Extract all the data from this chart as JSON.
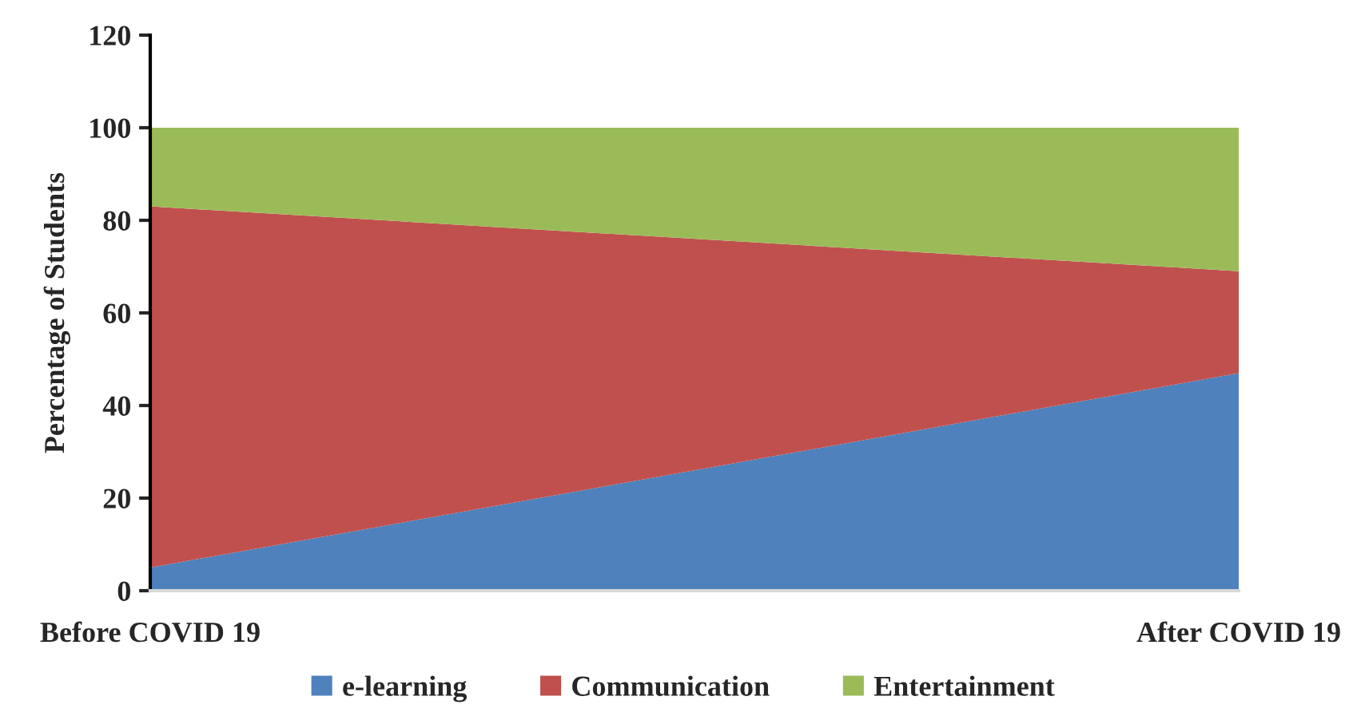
{
  "chart_data": {
    "type": "area",
    "stacked": true,
    "ylabel": "Percentage of Students",
    "categories": [
      "Before COVID 19",
      "After COVID 19"
    ],
    "series": [
      {
        "name": "e-learning",
        "color": "#4f81bd",
        "values": [
          5,
          47
        ]
      },
      {
        "name": "Communication",
        "color": "#c0504d",
        "values": [
          78,
          22
        ]
      },
      {
        "name": "Entertainment",
        "color": "#9bbb59",
        "values": [
          17,
          31
        ]
      }
    ],
    "ylim": [
      0,
      120
    ],
    "yticks": [
      0,
      20,
      40,
      60,
      80,
      100,
      120
    ],
    "grid": false,
    "legend": "bottom"
  }
}
